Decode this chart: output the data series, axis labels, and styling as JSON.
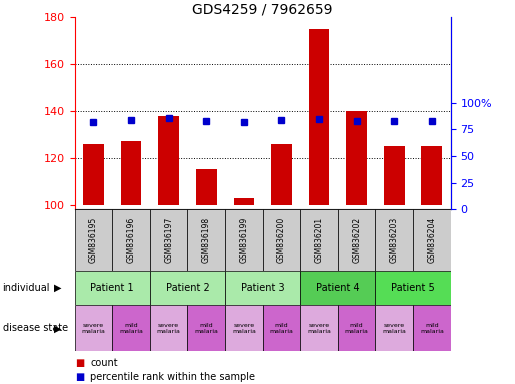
{
  "title": "GDS4259 / 7962659",
  "samples": [
    "GSM836195",
    "GSM836196",
    "GSM836197",
    "GSM836198",
    "GSM836199",
    "GSM836200",
    "GSM836201",
    "GSM836202",
    "GSM836203",
    "GSM836204"
  ],
  "count_values": [
    126,
    127,
    138,
    115,
    103,
    126,
    175,
    140,
    125,
    125
  ],
  "percentile_values": [
    82,
    84,
    86,
    83,
    82,
    84,
    85,
    83,
    83,
    83
  ],
  "ylim_left": [
    98,
    180
  ],
  "ylim_right": [
    0,
    100
  ],
  "yticks_left": [
    100,
    120,
    140,
    160,
    180
  ],
  "yticks_right": [
    0,
    25,
    50,
    75,
    100
  ],
  "patients": [
    {
      "label": "Patient 1",
      "cols": [
        0,
        1
      ],
      "color": "#aaeaaa"
    },
    {
      "label": "Patient 2",
      "cols": [
        2,
        3
      ],
      "color": "#aaeaaa"
    },
    {
      "label": "Patient 3",
      "cols": [
        4,
        5
      ],
      "color": "#aaeaaa"
    },
    {
      "label": "Patient 4",
      "cols": [
        6,
        7
      ],
      "color": "#55cc55"
    },
    {
      "label": "Patient 5",
      "cols": [
        8,
        9
      ],
      "color": "#55dd55"
    }
  ],
  "disease_states": [
    {
      "label": "severe\nmalaria",
      "col": 0,
      "color": "#ddaadd"
    },
    {
      "label": "mild\nmalaria",
      "col": 1,
      "color": "#cc66cc"
    },
    {
      "label": "severe\nmalaria",
      "col": 2,
      "color": "#ddaadd"
    },
    {
      "label": "mild\nmalaria",
      "col": 3,
      "color": "#cc66cc"
    },
    {
      "label": "severe\nmalaria",
      "col": 4,
      "color": "#ddaadd"
    },
    {
      "label": "mild\nmalaria",
      "col": 5,
      "color": "#cc66cc"
    },
    {
      "label": "severe\nmalaria",
      "col": 6,
      "color": "#ddaadd"
    },
    {
      "label": "mild\nmalaria",
      "col": 7,
      "color": "#cc66cc"
    },
    {
      "label": "severe\nmalaria",
      "col": 8,
      "color": "#ddaadd"
    },
    {
      "label": "mild\nmalaria",
      "col": 9,
      "color": "#cc66cc"
    }
  ],
  "bar_color": "#cc0000",
  "dot_color": "#0000cc",
  "background_color": "#ffffff",
  "sample_bg_color": "#cccccc",
  "count_ybase": 100,
  "right_ytick_labels": [
    "0",
    "25",
    "50",
    "75",
    "100%"
  ]
}
